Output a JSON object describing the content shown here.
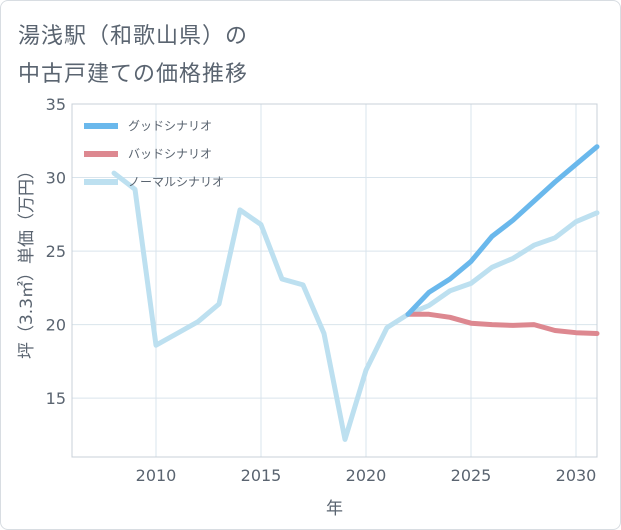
{
  "chart_data": {
    "type": "line",
    "title_lines": [
      "湯浅駅（和歌山県）の",
      "中古戸建ての価格推移"
    ],
    "xlabel": "年",
    "ylabel": "坪（3.3㎡）単価（万円）",
    "xlim": [
      2006,
      2031
    ],
    "ylim": [
      11,
      35
    ],
    "xticks": [
      2010,
      2015,
      2020,
      2025,
      2030
    ],
    "yticks": [
      15,
      20,
      25,
      30,
      35
    ],
    "grid": true,
    "legend_position": "top-left",
    "series": [
      {
        "name": "グッドシナリオ",
        "color": "#6ab8ec",
        "x": [
          2022,
          2023,
          2024,
          2025,
          2026,
          2027,
          2028,
          2029,
          2030,
          2031
        ],
        "y": [
          20.7,
          22.2,
          23.1,
          24.3,
          26.0,
          27.1,
          28.4,
          29.7,
          30.9,
          32.1
        ]
      },
      {
        "name": "バッドシナリオ",
        "color": "#dd8890",
        "x": [
          2022,
          2023,
          2024,
          2025,
          2026,
          2027,
          2028,
          2029,
          2030,
          2031
        ],
        "y": [
          20.7,
          20.7,
          20.5,
          20.1,
          20.0,
          19.95,
          20.0,
          19.6,
          19.45,
          19.4
        ]
      },
      {
        "name": "ノーマルシナリオ",
        "color": "#bde0f0",
        "x": [
          2008,
          2009,
          2010,
          2011,
          2012,
          2013,
          2014,
          2015,
          2016,
          2017,
          2018,
          2019,
          2020,
          2021,
          2022,
          2023,
          2024,
          2025,
          2026,
          2027,
          2028,
          2029,
          2030,
          2031
        ],
        "y": [
          30.3,
          29.2,
          18.6,
          19.4,
          20.2,
          21.4,
          27.8,
          26.8,
          23.1,
          22.7,
          19.4,
          12.2,
          16.9,
          19.8,
          20.7,
          21.3,
          22.3,
          22.8,
          23.9,
          24.5,
          25.4,
          25.9,
          27.0,
          27.6
        ]
      }
    ]
  }
}
